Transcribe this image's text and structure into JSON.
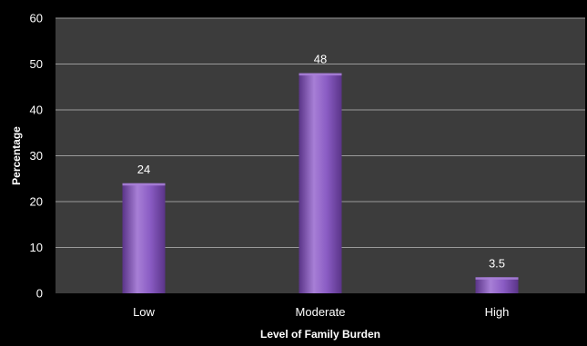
{
  "chart_data": {
    "type": "bar",
    "categories": [
      "Low",
      "Moderate",
      "High"
    ],
    "values": [
      24,
      48,
      3.5
    ],
    "data_labels": [
      "24",
      "48",
      "3.5"
    ],
    "xlabel": "Level of Family Burden",
    "ylabel": "Percentage",
    "ylim": [
      0,
      60
    ],
    "yticks": [
      "0",
      "10",
      "20",
      "30",
      "40",
      "50",
      "60"
    ],
    "grid": true,
    "legend": "none",
    "colors": {
      "page_background": "#000000",
      "plot_background": "#3c3c3c",
      "bar_light": "#a77fd6",
      "bar_mid": "#8a5cc4",
      "bar_dark": "#5a3488",
      "gridline": "#9a9a9a",
      "text": "#ffffff"
    }
  }
}
